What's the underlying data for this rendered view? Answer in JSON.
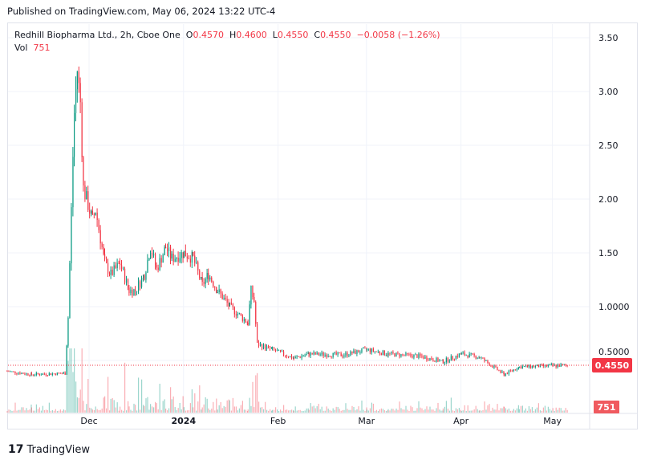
{
  "header": {
    "published": "Published on TradingView.com, May 06, 2024 13:22 UTC-4"
  },
  "legend": {
    "symbol": "Redhill Biopharma Ltd., 2h, Cboe One",
    "o_label": "O",
    "o": "0.4570",
    "h_label": "H",
    "h": "0.4600",
    "l_label": "L",
    "l": "0.4550",
    "c_label": "C",
    "c": "0.4550",
    "change": "−0.0058 (−1.26%)",
    "vol_label": "Vol",
    "vol": "751"
  },
  "colors": {
    "up": "#089981",
    "down": "#f23645",
    "grid": "#f0f3fa"
  },
  "brand": {
    "name": "TradingView",
    "icon": "tradingview-logo-icon"
  },
  "chart_data": {
    "type": "candlestick",
    "interval": "2h",
    "y_ticks": [
      "3.50",
      "3.00",
      "2.50",
      "2.00",
      "1.50",
      "1.0000",
      "0.5000"
    ],
    "y_tick_values": [
      3.5,
      3.0,
      2.5,
      2.0,
      1.5,
      1.0,
      0.5
    ],
    "x_ticks": [
      {
        "label": "Dec",
        "date": "2023-12-01"
      },
      {
        "label": "2024",
        "date": "2024-01-01"
      },
      {
        "label": "Feb",
        "date": "2024-02-01"
      },
      {
        "label": "Mar",
        "date": "2024-03-01"
      },
      {
        "label": "Apr",
        "date": "2024-04-01"
      },
      {
        "label": "May",
        "date": "2024-05-01"
      }
    ],
    "last_price": "0.4550",
    "last_volume": "751",
    "closes": [
      [
        "2023-11-04",
        0.4
      ],
      [
        "2023-11-12",
        0.37
      ],
      [
        "2023-11-23",
        0.38
      ],
      [
        "2023-11-24",
        0.9
      ],
      [
        "2023-11-26",
        2.8
      ],
      [
        "2023-11-27",
        3.2
      ],
      [
        "2023-11-28",
        2.9
      ],
      [
        "2023-11-29",
        2.1
      ],
      [
        "2023-11-30",
        2.0
      ],
      [
        "2023-12-02",
        1.8
      ],
      [
        "2023-12-03",
        1.9
      ],
      [
        "2023-12-06",
        1.4
      ],
      [
        "2023-12-08",
        1.3
      ],
      [
        "2023-12-11",
        1.4
      ],
      [
        "2023-12-14",
        1.15
      ],
      [
        "2023-12-16",
        1.15
      ],
      [
        "2023-12-19",
        1.3
      ],
      [
        "2023-12-21",
        1.55
      ],
      [
        "2023-12-23",
        1.35
      ],
      [
        "2023-12-26",
        1.55
      ],
      [
        "2023-12-28",
        1.45
      ],
      [
        "2024-01-01",
        1.5
      ],
      [
        "2024-01-04",
        1.45
      ],
      [
        "2024-01-07",
        1.2
      ],
      [
        "2024-01-09",
        1.3
      ],
      [
        "2024-01-12",
        1.15
      ],
      [
        "2024-01-16",
        1.0
      ],
      [
        "2024-01-22",
        0.85
      ],
      [
        "2024-01-23",
        1.15
      ],
      [
        "2024-01-24",
        1.05
      ],
      [
        "2024-01-25",
        0.65
      ],
      [
        "2024-01-30",
        0.6
      ],
      [
        "2024-02-06",
        0.52
      ],
      [
        "2024-02-11",
        0.56
      ],
      [
        "2024-02-22",
        0.55
      ],
      [
        "2024-03-01",
        0.6
      ],
      [
        "2024-03-08",
        0.56
      ],
      [
        "2024-03-18",
        0.54
      ],
      [
        "2024-03-26",
        0.49
      ],
      [
        "2024-04-01",
        0.56
      ],
      [
        "2024-04-07",
        0.53
      ],
      [
        "2024-04-15",
        0.37
      ],
      [
        "2024-04-20",
        0.44
      ],
      [
        "2024-05-01",
        0.45
      ],
      [
        "2024-05-06",
        0.455
      ]
    ]
  }
}
